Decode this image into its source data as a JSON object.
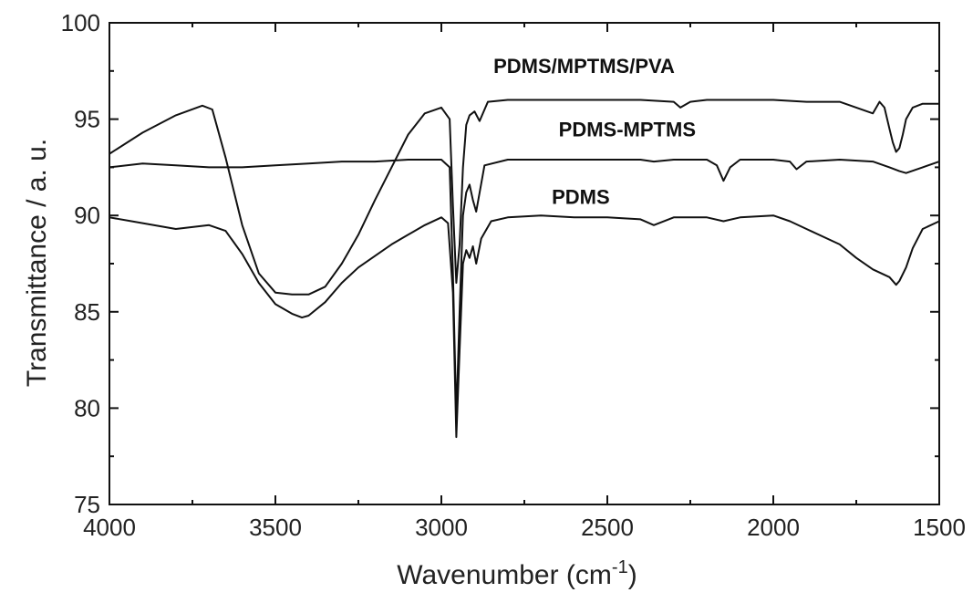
{
  "chart_data": {
    "type": "line",
    "xlabel": "Wavenumber (cm",
    "xlabel_sup": "-1",
    "xlabel_suffix": ")",
    "ylabel": "Transmittance / a. u.",
    "xlim": [
      4000,
      1500
    ],
    "ylim": [
      75,
      100
    ],
    "x_reversed": true,
    "grid": false,
    "x_ticks": [
      4000,
      3500,
      3000,
      2500,
      2000,
      1500
    ],
    "y_ticks": [
      75,
      80,
      85,
      90,
      95,
      100
    ],
    "series": [
      {
        "name": "PDMS/MPTMS/PVA",
        "x": [
          4000,
          3900,
          3800,
          3720,
          3690,
          3650,
          3600,
          3550,
          3500,
          3450,
          3420,
          3400,
          3350,
          3300,
          3250,
          3200,
          3150,
          3100,
          3050,
          3000,
          2975,
          2965,
          2955,
          2945,
          2935,
          2925,
          2915,
          2900,
          2885,
          2860,
          2800,
          2700,
          2600,
          2500,
          2400,
          2300,
          2280,
          2250,
          2200,
          2100,
          2000,
          1900,
          1800,
          1700,
          1680,
          1665,
          1650,
          1640,
          1630,
          1620,
          1610,
          1600,
          1580,
          1550,
          1500
        ],
        "y": [
          93.2,
          94.3,
          95.2,
          95.7,
          95.5,
          93.0,
          89.5,
          87.0,
          86.0,
          85.9,
          85.9,
          85.9,
          86.3,
          87.5,
          89.0,
          90.8,
          92.5,
          94.2,
          95.3,
          95.6,
          95.0,
          90.5,
          86.5,
          88.5,
          92.5,
          94.7,
          95.2,
          95.4,
          94.9,
          95.9,
          96.0,
          96.0,
          96.0,
          96.0,
          96.0,
          95.9,
          95.6,
          95.9,
          96.0,
          96.0,
          96.0,
          95.9,
          95.9,
          95.3,
          95.9,
          95.6,
          94.5,
          93.8,
          93.3,
          93.5,
          94.2,
          95.0,
          95.6,
          95.8,
          95.8
        ]
      },
      {
        "name": "PDMS-MPTMS",
        "x": [
          4000,
          3900,
          3800,
          3700,
          3600,
          3500,
          3400,
          3300,
          3200,
          3100,
          3000,
          2975,
          2965,
          2955,
          2945,
          2935,
          2925,
          2915,
          2905,
          2895,
          2870,
          2800,
          2700,
          2600,
          2500,
          2400,
          2360,
          2300,
          2200,
          2170,
          2150,
          2130,
          2100,
          2000,
          1950,
          1930,
          1900,
          1800,
          1700,
          1650,
          1620,
          1600,
          1550,
          1500
        ],
        "y": [
          92.5,
          92.7,
          92.6,
          92.5,
          92.5,
          92.6,
          92.7,
          92.8,
          92.8,
          92.9,
          92.9,
          92.5,
          87.0,
          79.5,
          85.0,
          90.0,
          91.2,
          91.6,
          90.8,
          90.2,
          92.6,
          92.9,
          92.9,
          92.9,
          92.9,
          92.9,
          92.8,
          92.9,
          92.9,
          92.6,
          91.8,
          92.5,
          92.9,
          92.9,
          92.8,
          92.4,
          92.8,
          92.9,
          92.8,
          92.5,
          92.3,
          92.2,
          92.5,
          92.8
        ]
      },
      {
        "name": "PDMS",
        "x": [
          4000,
          3900,
          3800,
          3700,
          3650,
          3600,
          3550,
          3500,
          3450,
          3420,
          3400,
          3350,
          3300,
          3250,
          3200,
          3150,
          3100,
          3050,
          3000,
          2980,
          2965,
          2955,
          2945,
          2935,
          2925,
          2915,
          2905,
          2895,
          2880,
          2850,
          2800,
          2700,
          2600,
          2500,
          2400,
          2360,
          2300,
          2200,
          2150,
          2100,
          2000,
          1950,
          1900,
          1800,
          1750,
          1700,
          1650,
          1630,
          1620,
          1600,
          1580,
          1550,
          1500
        ],
        "y": [
          89.9,
          89.6,
          89.3,
          89.5,
          89.2,
          88.0,
          86.5,
          85.4,
          84.9,
          84.7,
          84.8,
          85.5,
          86.5,
          87.3,
          87.9,
          88.5,
          89.0,
          89.5,
          89.9,
          89.6,
          86.0,
          78.5,
          83.0,
          87.5,
          88.2,
          87.8,
          88.4,
          87.5,
          88.8,
          89.7,
          89.9,
          90.0,
          89.9,
          89.9,
          89.8,
          89.5,
          89.9,
          89.9,
          89.7,
          89.9,
          90.0,
          89.7,
          89.3,
          88.5,
          87.8,
          87.2,
          86.8,
          86.4,
          86.6,
          87.3,
          88.3,
          89.3,
          89.7
        ]
      }
    ],
    "annotations": [
      {
        "text": "PDMS/MPTMS/PVA",
        "x": 2570,
        "y": 97.4
      },
      {
        "text": "PDMS-MPTMS",
        "x": 2440,
        "y": 94.1
      },
      {
        "text": "PDMS",
        "x": 2580,
        "y": 90.6
      }
    ]
  }
}
